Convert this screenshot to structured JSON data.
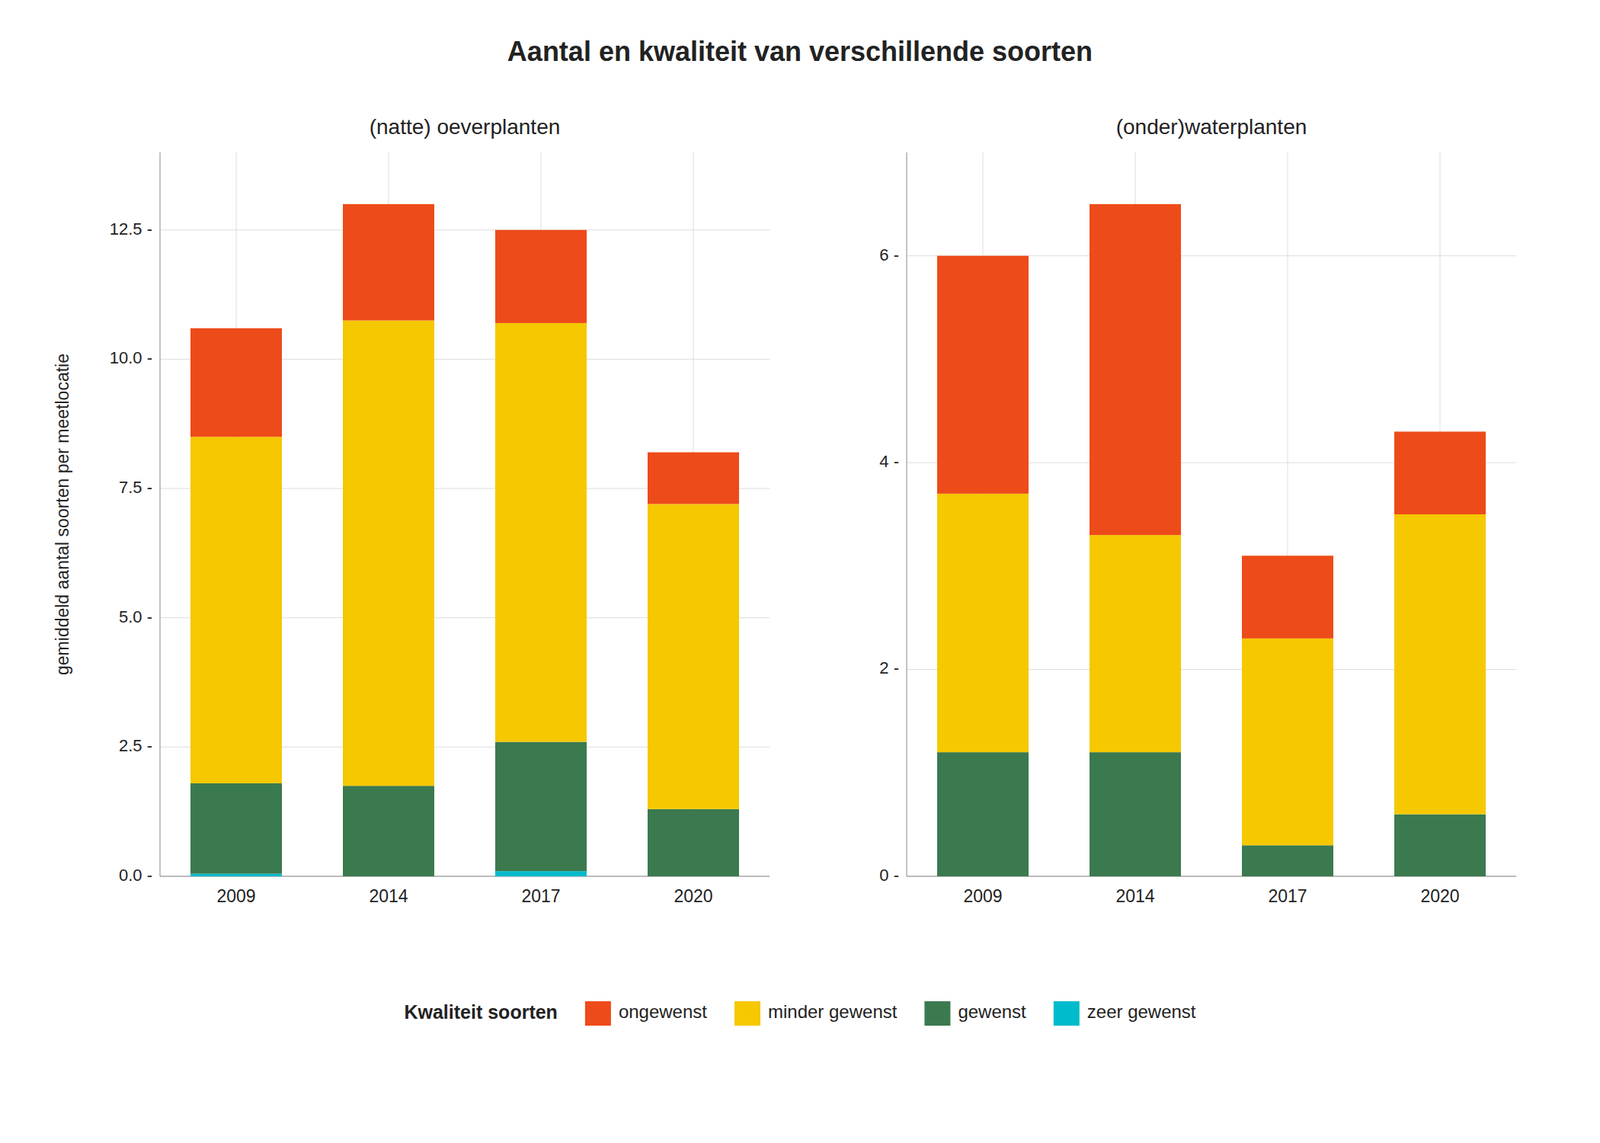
{
  "title": "Aantal en kwaliteit van verschillende soorten",
  "legend_title": "Kwaliteit soorten",
  "chart_data": [
    {
      "type": "bar",
      "stacked": true,
      "grid": true,
      "title": "(natte) oeverplanten",
      "ylabel": "gemiddeld aantal soorten per meetlocatie",
      "categories": [
        "2009",
        "2014",
        "2017",
        "2020"
      ],
      "series": [
        {
          "name": "zeer gewenst",
          "color": "#00BBCC",
          "values": [
            0.05,
            0.0,
            0.1,
            0.0
          ]
        },
        {
          "name": "gewenst",
          "color": "#3B7A4E",
          "values": [
            1.75,
            1.75,
            2.5,
            1.3
          ]
        },
        {
          "name": "minder gewenst",
          "color": "#F5C800",
          "values": [
            6.7,
            9.0,
            8.1,
            5.9
          ]
        },
        {
          "name": "ongewenst",
          "color": "#EE4B1A",
          "values": [
            2.1,
            2.25,
            1.8,
            1.0
          ]
        }
      ],
      "ylim": [
        0,
        14
      ],
      "yticks": [
        {
          "value": 0.0,
          "label": "0.0 -"
        },
        {
          "value": 2.5,
          "label": "2.5 -"
        },
        {
          "value": 5.0,
          "label": "5.0 -"
        },
        {
          "value": 7.5,
          "label": "7.5 -"
        },
        {
          "value": 10.0,
          "label": "10.0 -"
        },
        {
          "value": 12.5,
          "label": "12.5 -"
        }
      ]
    },
    {
      "type": "bar",
      "stacked": true,
      "grid": true,
      "title": "(onder)waterplanten",
      "categories": [
        "2009",
        "2014",
        "2017",
        "2020"
      ],
      "series": [
        {
          "name": "zeer gewenst",
          "color": "#00BBCC",
          "values": [
            0.0,
            0.0,
            0.0,
            0.0
          ]
        },
        {
          "name": "gewenst",
          "color": "#3B7A4E",
          "values": [
            1.2,
            1.2,
            0.3,
            0.6
          ]
        },
        {
          "name": "minder gewenst",
          "color": "#F5C800",
          "values": [
            2.5,
            2.1,
            2.0,
            2.9
          ]
        },
        {
          "name": "ongewenst",
          "color": "#EE4B1A",
          "values": [
            2.3,
            3.2,
            0.8,
            0.8
          ]
        }
      ],
      "ylim": [
        0,
        7
      ],
      "yticks": [
        {
          "value": 0,
          "label": "0 -"
        },
        {
          "value": 2,
          "label": "2 -"
        },
        {
          "value": 4,
          "label": "4 -"
        },
        {
          "value": 6,
          "label": "6 -"
        }
      ]
    }
  ]
}
